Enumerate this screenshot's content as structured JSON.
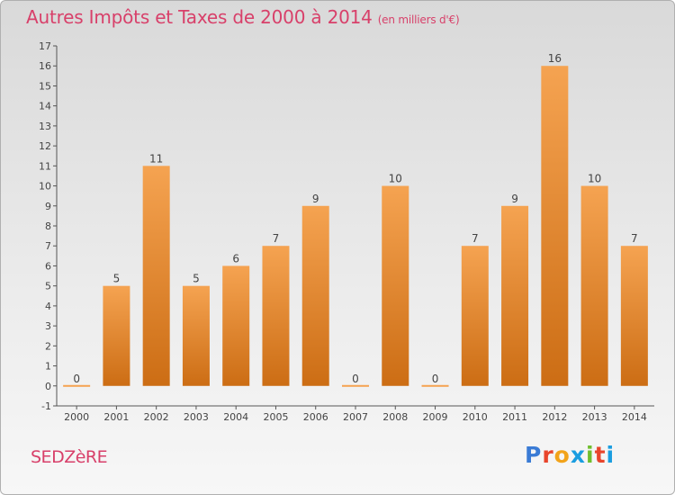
{
  "header": {
    "title": "Autres Impôts et Taxes de 2000 à 2014",
    "subtitle": "(en milliers d'€)"
  },
  "footer": {
    "commune": "SEDZèRE",
    "logo_letters": [
      "P",
      "r",
      "o",
      "x",
      "i",
      "t",
      "i"
    ],
    "logo_colors": [
      "#3a7bd5",
      "#e8452c",
      "#f2a31a",
      "#1a9de0",
      "#6fbe2e",
      "#e8452c",
      "#1a9de0"
    ]
  },
  "colors": {
    "bar_top": "#f5a351",
    "bar_bottom": "#cc6d14",
    "title": "#d8406a",
    "axis": "#555555"
  },
  "chart_data": {
    "type": "bar",
    "categories": [
      "2000",
      "2001",
      "2002",
      "2003",
      "2004",
      "2005",
      "2006",
      "2007",
      "2008",
      "2009",
      "2010",
      "2011",
      "2012",
      "2013",
      "2014"
    ],
    "values": [
      0,
      5,
      11,
      5,
      6,
      7,
      9,
      0,
      10,
      0,
      7,
      9,
      16,
      10,
      7
    ],
    "ylim": [
      -1,
      17
    ],
    "yticks": [
      -1,
      0,
      1,
      2,
      3,
      4,
      5,
      6,
      7,
      8,
      9,
      10,
      11,
      12,
      13,
      14,
      15,
      16,
      17
    ],
    "grid": false,
    "data_labels": true
  }
}
